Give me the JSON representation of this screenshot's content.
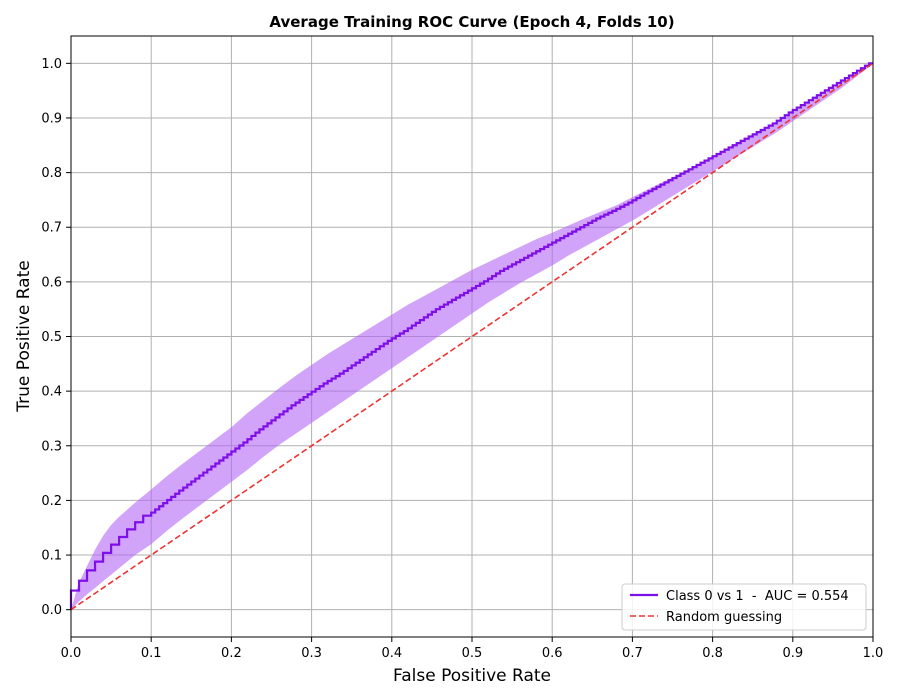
{
  "chart_data": {
    "type": "line",
    "title": "Average Training ROC Curve (Epoch 4, Folds 10)",
    "xlabel": "False Positive Rate",
    "ylabel": "True Positive Rate",
    "xlim": [
      0.0,
      1.0
    ],
    "ylim": [
      0.0,
      1.0
    ],
    "grid": true,
    "legend_position": "bottom-right",
    "xticks": [
      "0.0",
      "0.1",
      "0.2",
      "0.3",
      "0.4",
      "0.5",
      "0.6",
      "0.7",
      "0.8",
      "0.9",
      "1.0"
    ],
    "yticks": [
      "0.0",
      "0.1",
      "0.2",
      "0.3",
      "0.4",
      "0.5",
      "0.6",
      "0.7",
      "0.8",
      "0.9",
      "1.0"
    ],
    "series": [
      {
        "name": "Class 0 vs 1  -  AUC = 0.554",
        "color": "#7f0fe8",
        "style": "solid-step",
        "x": [
          0.0,
          0.01,
          0.02,
          0.03,
          0.04,
          0.05,
          0.06,
          0.07,
          0.08,
          0.09,
          0.1,
          0.12,
          0.14,
          0.16,
          0.18,
          0.2,
          0.22,
          0.24,
          0.26,
          0.28,
          0.3,
          0.32,
          0.34,
          0.36,
          0.38,
          0.4,
          0.42,
          0.44,
          0.46,
          0.48,
          0.5,
          0.52,
          0.54,
          0.56,
          0.58,
          0.6,
          0.62,
          0.64,
          0.66,
          0.68,
          0.7,
          0.72,
          0.74,
          0.76,
          0.78,
          0.8,
          0.82,
          0.84,
          0.86,
          0.88,
          0.9,
          0.92,
          0.94,
          0.96,
          0.98,
          1.0
        ],
        "y": [
          0.0,
          0.035,
          0.053,
          0.072,
          0.088,
          0.104,
          0.119,
          0.133,
          0.147,
          0.16,
          0.172,
          0.195,
          0.218,
          0.24,
          0.262,
          0.284,
          0.306,
          0.33,
          0.352,
          0.374,
          0.394,
          0.414,
          0.432,
          0.452,
          0.472,
          0.492,
          0.51,
          0.53,
          0.55,
          0.567,
          0.584,
          0.601,
          0.62,
          0.636,
          0.652,
          0.668,
          0.684,
          0.7,
          0.716,
          0.73,
          0.745,
          0.762,
          0.778,
          0.794,
          0.81,
          0.826,
          0.842,
          0.858,
          0.874,
          0.89,
          0.91,
          0.928,
          0.946,
          0.964,
          0.982,
          1.0
        ],
        "band_upper": [
          0.0,
          0.05,
          0.08,
          0.11,
          0.135,
          0.155,
          0.17,
          0.183,
          0.196,
          0.208,
          0.22,
          0.245,
          0.268,
          0.29,
          0.312,
          0.334,
          0.36,
          0.383,
          0.406,
          0.428,
          0.448,
          0.468,
          0.486,
          0.504,
          0.522,
          0.54,
          0.558,
          0.574,
          0.59,
          0.606,
          0.622,
          0.636,
          0.65,
          0.664,
          0.678,
          0.69,
          0.703,
          0.716,
          0.728,
          0.74,
          0.755,
          0.77,
          0.784,
          0.798,
          0.812,
          0.828,
          0.844,
          0.86,
          0.876,
          0.892,
          0.91,
          0.928,
          0.946,
          0.964,
          0.982,
          1.0
        ],
        "band_lower": [
          0.0,
          0.015,
          0.028,
          0.04,
          0.052,
          0.064,
          0.076,
          0.088,
          0.1,
          0.11,
          0.12,
          0.145,
          0.168,
          0.19,
          0.212,
          0.234,
          0.256,
          0.28,
          0.302,
          0.322,
          0.342,
          0.362,
          0.382,
          0.402,
          0.422,
          0.442,
          0.462,
          0.482,
          0.502,
          0.522,
          0.542,
          0.562,
          0.58,
          0.598,
          0.614,
          0.63,
          0.648,
          0.664,
          0.68,
          0.696,
          0.712,
          0.73,
          0.748,
          0.766,
          0.784,
          0.802,
          0.82,
          0.838,
          0.856,
          0.874,
          0.894,
          0.914,
          0.934,
          0.954,
          0.976,
          1.0
        ]
      },
      {
        "name": "Random guessing",
        "color": "#ee3333",
        "style": "dashed",
        "x": [
          0.0,
          1.0
        ],
        "y": [
          0.0,
          1.0
        ]
      }
    ],
    "band_color": "#b266f5"
  }
}
